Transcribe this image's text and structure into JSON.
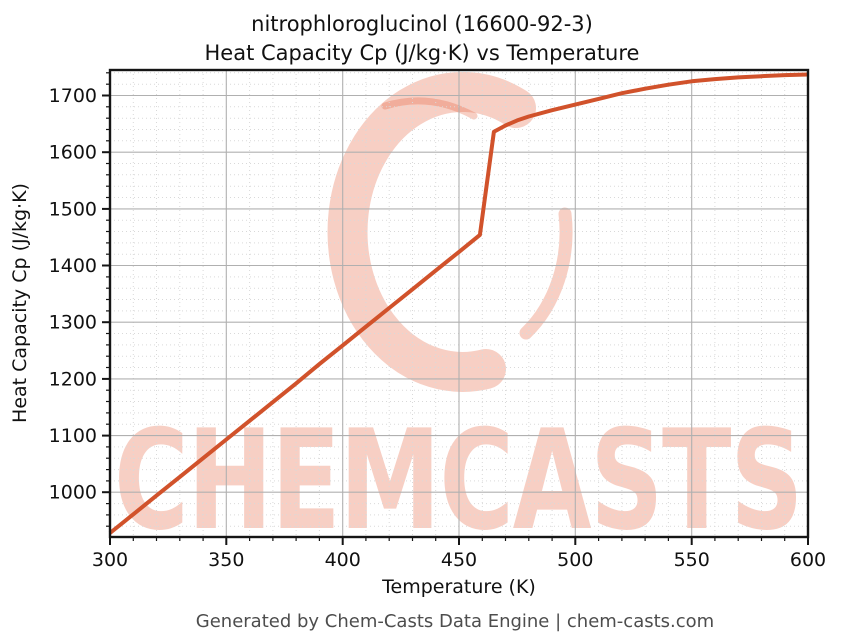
{
  "title": {
    "line1": "nitrophloroglucinol (16600-92-3)",
    "line2": "Heat Capacity Cp (J/kg·K) vs Temperature"
  },
  "footer": "Generated by Chem-Casts Data Engine | chem-casts.com",
  "watermark": {
    "text": "CHEMCASTS",
    "color": "rgba(229,96,60,0.30)"
  },
  "colors": {
    "line": "#d1522b",
    "grid_major": "#b0b0b0",
    "grid_minor": "#d9d9d9",
    "spine": "#151515",
    "tick": "#151515"
  },
  "chart_data": {
    "type": "line",
    "title": "nitrophloroglucinol (16600-92-3)\nHeat Capacity Cp (J/kg·K) vs Temperature",
    "xlabel": "Temperature (K)",
    "ylabel": "Heat Capacity Cp (J/kg·K)",
    "xlim": [
      300,
      600
    ],
    "ylim": [
      921,
      1745
    ],
    "x_ticks": [
      300,
      350,
      400,
      450,
      500,
      550,
      600
    ],
    "y_ticks": [
      1000,
      1100,
      1200,
      1300,
      1400,
      1500,
      1600,
      1700
    ],
    "x_minor_step": 10,
    "y_minor_step": 20,
    "grid": true,
    "legend": "none",
    "series": [
      {
        "name": "Heat Capacity Cp",
        "points": [
          [
            300,
            928
          ],
          [
            310,
            961
          ],
          [
            320,
            994
          ],
          [
            330,
            1027
          ],
          [
            340,
            1060
          ],
          [
            350,
            1093
          ],
          [
            360,
            1126
          ],
          [
            370,
            1159
          ],
          [
            380,
            1192
          ],
          [
            390,
            1226
          ],
          [
            400,
            1259
          ],
          [
            410,
            1292
          ],
          [
            420,
            1325
          ],
          [
            430,
            1358
          ],
          [
            440,
            1391
          ],
          [
            450,
            1424
          ],
          [
            459,
            1454
          ],
          [
            465,
            1636
          ],
          [
            470,
            1647
          ],
          [
            475,
            1656
          ],
          [
            480,
            1663
          ],
          [
            490,
            1674
          ],
          [
            500,
            1684
          ],
          [
            510,
            1694
          ],
          [
            520,
            1704
          ],
          [
            530,
            1712
          ],
          [
            540,
            1719
          ],
          [
            550,
            1725
          ],
          [
            560,
            1729
          ],
          [
            570,
            1732
          ],
          [
            580,
            1734
          ],
          [
            590,
            1736
          ],
          [
            600,
            1737
          ]
        ]
      }
    ]
  }
}
